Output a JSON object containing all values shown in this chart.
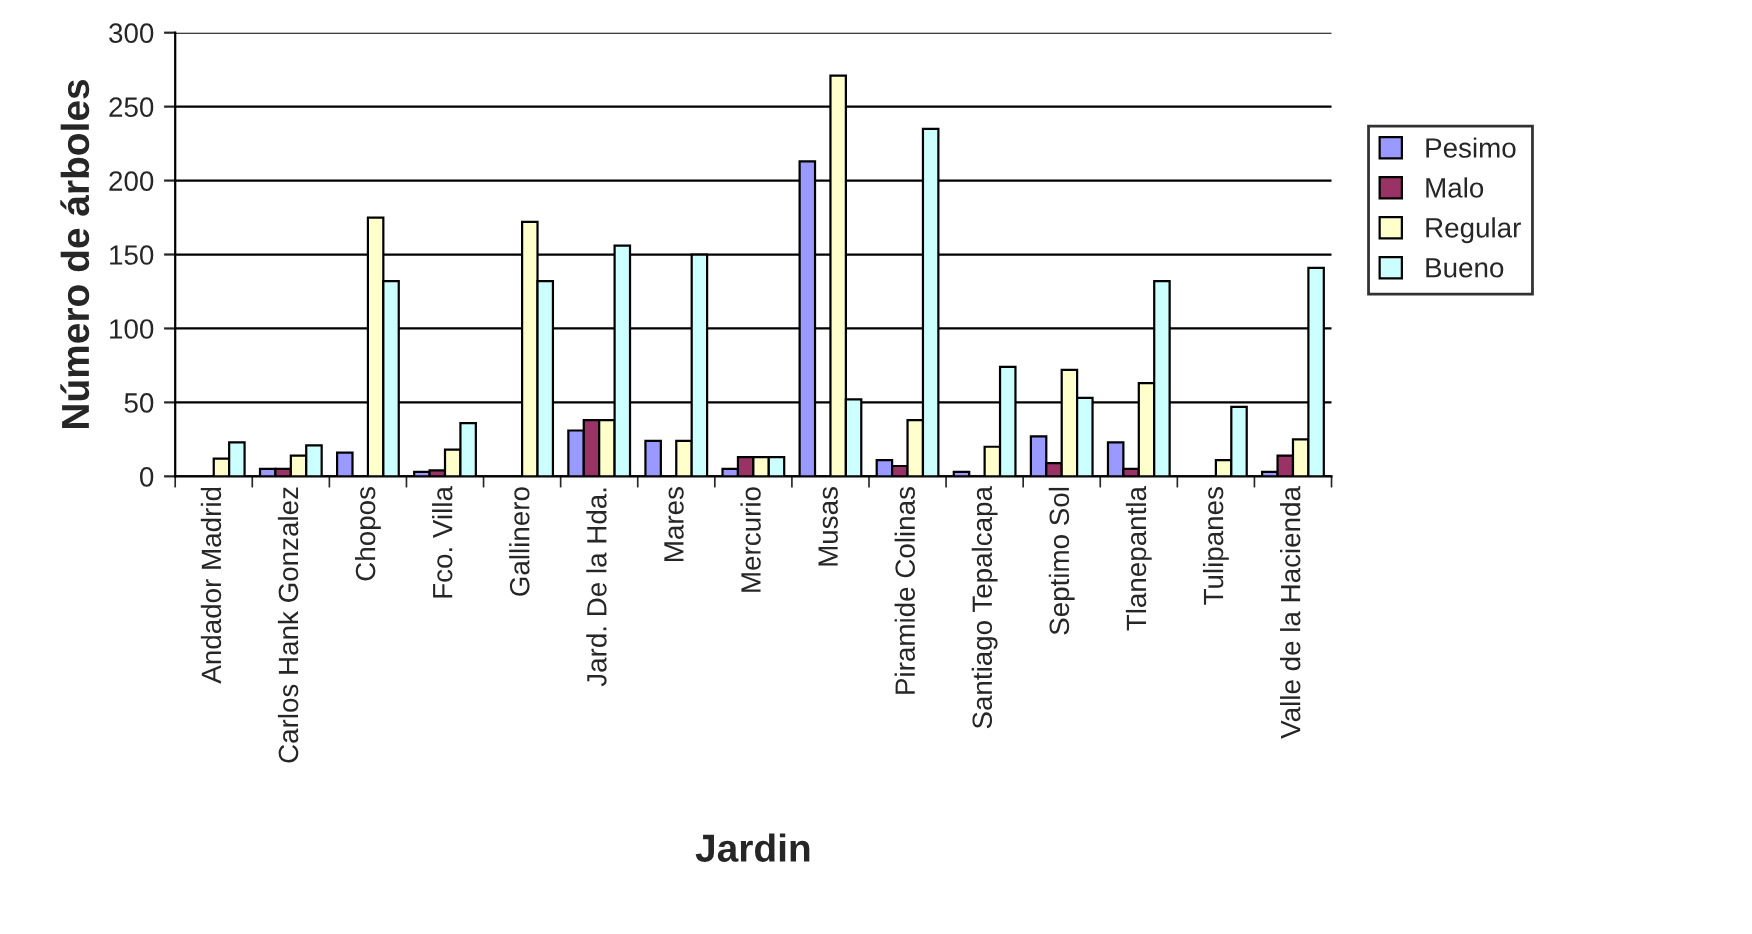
{
  "chart_data": {
    "type": "bar",
    "xlabel": "Jardin",
    "ylabel": "Número de árboles",
    "categories": [
      "Andador Madrid",
      "Carlos Hank Gonzalez",
      "Chopos",
      "Fco. Villa",
      "Gallinero",
      "Jard. De la Hda.",
      "Mares",
      "Mercurio",
      "Musas",
      "Piramide Colinas",
      "Santiago Tepalcapa",
      "Septimo Sol",
      "Tlanepantla",
      "Tulipanes",
      "Valle de la Hacienda"
    ],
    "series": [
      {
        "name": "Pesimo",
        "color": "#9999ff",
        "values": [
          null,
          5,
          16,
          3,
          null,
          31,
          24,
          5,
          213,
          11,
          3,
          27,
          23,
          null,
          3
        ]
      },
      {
        "name": "Malo",
        "color": "#993366",
        "values": [
          null,
          5,
          null,
          4,
          null,
          38,
          null,
          13,
          null,
          7,
          null,
          9,
          5,
          null,
          14
        ]
      },
      {
        "name": "Regular",
        "color": "#ffffcc",
        "values": [
          12,
          14,
          175,
          18,
          172,
          38,
          24,
          13,
          271,
          38,
          20,
          72,
          63,
          11,
          25
        ]
      },
      {
        "name": "Bueno",
        "color": "#ccffff",
        "values": [
          23,
          21,
          132,
          36,
          132,
          156,
          150,
          13,
          52,
          235,
          74,
          53,
          132,
          47,
          141
        ]
      }
    ],
    "ylim": [
      0,
      300
    ],
    "yticks": [
      0,
      50,
      100,
      150,
      200,
      250,
      300
    ],
    "grid": "y",
    "legend": "right"
  }
}
